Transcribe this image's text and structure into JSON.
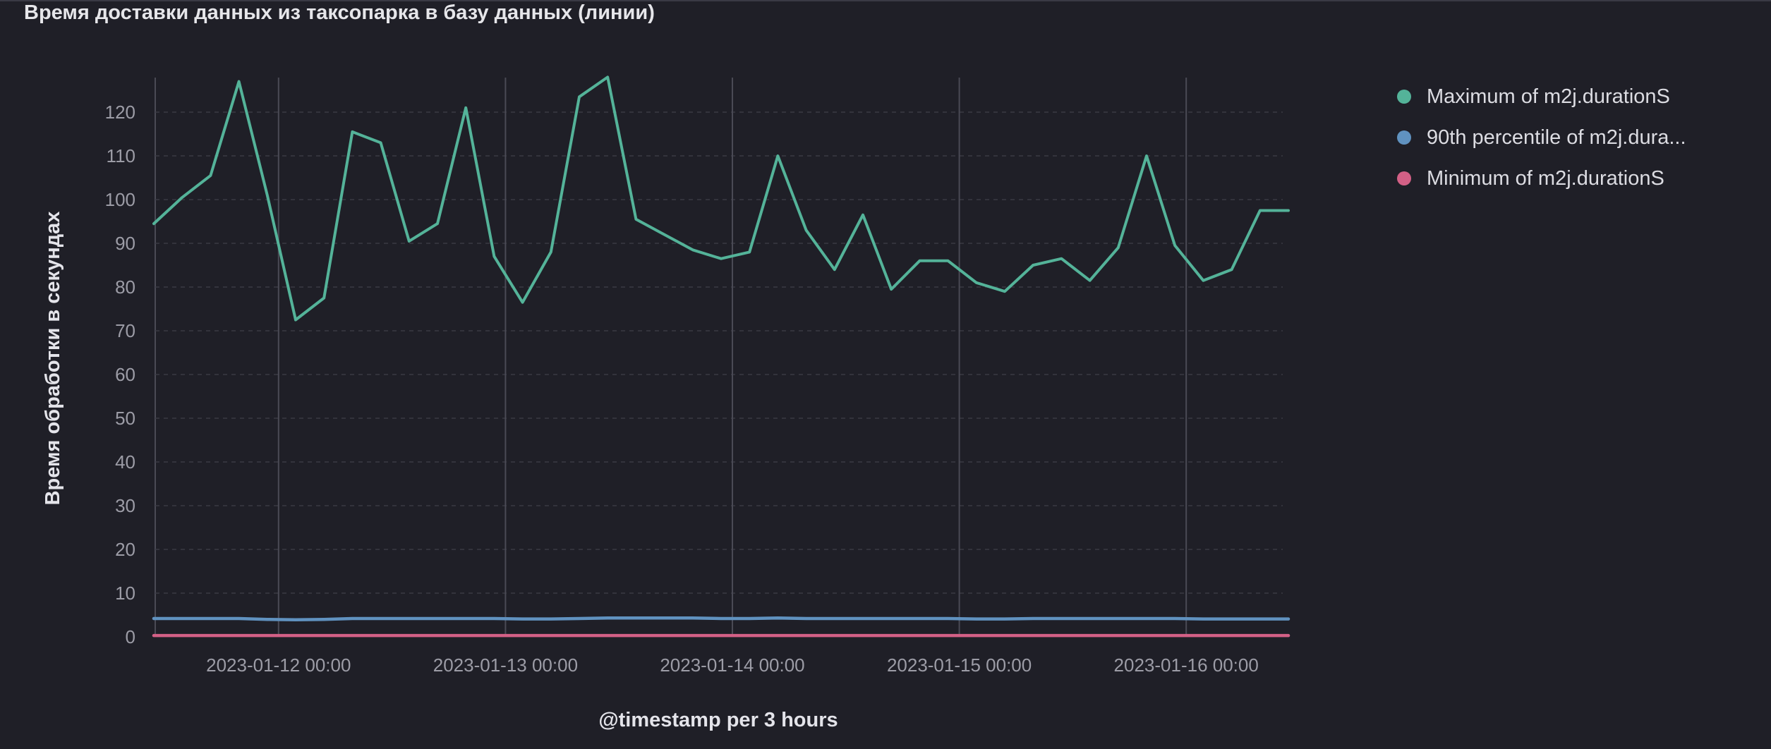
{
  "panel": {
    "title": "Время доставки данных из таксопарка в базу данных (линии)"
  },
  "colors": {
    "background": "#1f1f27",
    "grid": "#3a3a44",
    "vertical_grid": "#4a4a55",
    "max": "#54b399",
    "p90": "#6092c0",
    "min": "#d36086"
  },
  "legend": [
    {
      "label": "Maximum of m2j.durationS",
      "color": "#54b399"
    },
    {
      "label": "90th percentile of m2j.dura...",
      "color": "#6092c0"
    },
    {
      "label": "Minimum of m2j.durationS",
      "color": "#d36086"
    }
  ],
  "chart_data": {
    "type": "line",
    "xlabel": "@timestamp per 3 hours",
    "ylabel": "Время обработки в секундах",
    "ylim": [
      0,
      128
    ],
    "yticks": [
      0,
      10,
      20,
      30,
      40,
      50,
      60,
      70,
      80,
      90,
      100,
      110,
      120
    ],
    "x_tick_labels": [
      "2023-01-12 00:00",
      "2023-01-13 00:00",
      "2023-01-14 00:00",
      "2023-01-15 00:00",
      "2023-01-16 00:00"
    ],
    "x_interval": "3 hours",
    "x_start": "2023-01-11 12:00",
    "grid": "horizontal dashed, vertical at day boundaries",
    "legend_position": "right",
    "series": [
      {
        "name": "Maximum of m2j.durationS",
        "color": "#54b399",
        "values": [
          94.5,
          100.5,
          105.5,
          127,
          101,
          72.5,
          77.5,
          115.5,
          113,
          90.5,
          94.5,
          121,
          87,
          76.5,
          88,
          123.5,
          128,
          95.5,
          92,
          88.5,
          86.5,
          88,
          110,
          93,
          84,
          96.5,
          79.5,
          86,
          86,
          81,
          79,
          85,
          86.5,
          81.5,
          89,
          110,
          89.5,
          81.5,
          84,
          97.5,
          97.5
        ]
      },
      {
        "name": "90th percentile of m2j.dura...",
        "color": "#6092c0",
        "values": [
          4.2,
          4.2,
          4.2,
          4.2,
          4.0,
          3.9,
          4.0,
          4.2,
          4.2,
          4.2,
          4.2,
          4.2,
          4.2,
          4.1,
          4.1,
          4.2,
          4.3,
          4.3,
          4.3,
          4.3,
          4.2,
          4.2,
          4.3,
          4.2,
          4.2,
          4.2,
          4.2,
          4.2,
          4.2,
          4.1,
          4.1,
          4.2,
          4.2,
          4.2,
          4.2,
          4.2,
          4.2,
          4.1,
          4.1,
          4.1,
          4.1
        ]
      },
      {
        "name": "Minimum of m2j.durationS",
        "color": "#d36086",
        "values": [
          0.3,
          0.3,
          0.3,
          0.3,
          0.3,
          0.3,
          0.3,
          0.3,
          0.3,
          0.3,
          0.3,
          0.3,
          0.3,
          0.3,
          0.3,
          0.3,
          0.3,
          0.3,
          0.3,
          0.3,
          0.3,
          0.3,
          0.3,
          0.3,
          0.3,
          0.3,
          0.3,
          0.3,
          0.3,
          0.3,
          0.3,
          0.3,
          0.3,
          0.3,
          0.3,
          0.3,
          0.3,
          0.3,
          0.3,
          0.3,
          0.3
        ]
      }
    ]
  }
}
